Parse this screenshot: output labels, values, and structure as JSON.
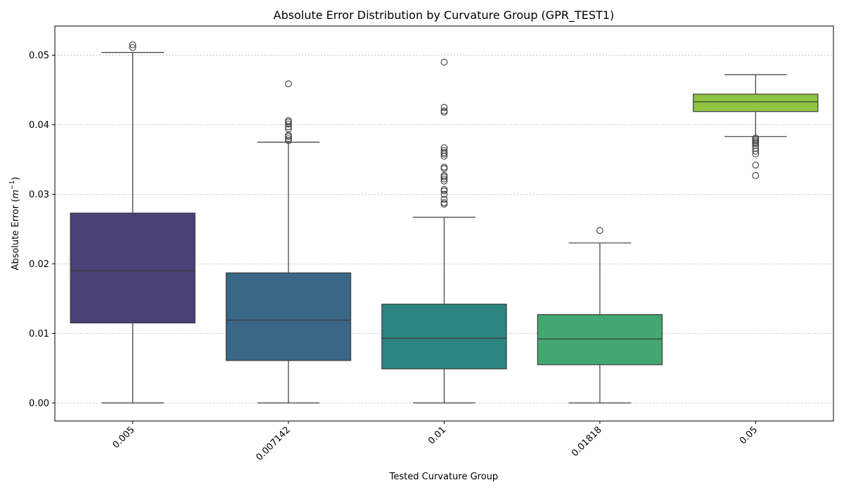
{
  "chart_data": {
    "type": "box",
    "title": "Absolute Error Distribution by Curvature Group (GPR_TEST1)",
    "xlabel": "Tested Curvature Group",
    "ylabel": "Absolute Error (",
    "ylabel_math": "m",
    "ylabel_sup": "−1",
    "ylabel_close": ")",
    "ylim": [
      -0.0026,
      0.0542
    ],
    "yticks": [
      0.0,
      0.01,
      0.02,
      0.03,
      0.04,
      0.05
    ],
    "ytick_labels": [
      "0.00",
      "0.01",
      "0.02",
      "0.03",
      "0.04",
      "0.05"
    ],
    "grid": "horizontal-dotted",
    "categories": [
      "0.005",
      "0.007142",
      "0.01",
      "0.01818",
      "0.05"
    ],
    "boxes": [
      {
        "category": "0.005",
        "color": "#4a4177",
        "whisker_low": 0.0,
        "q1": 0.0115,
        "median": 0.019,
        "q3": 0.0273,
        "whisker_high": 0.0504,
        "fliers": [
          0.0511,
          0.0515
        ]
      },
      {
        "category": "0.007142",
        "color": "#3b6786",
        "whisker_low": 0.0,
        "q1": 0.0061,
        "median": 0.0119,
        "q3": 0.0187,
        "whisker_high": 0.0375,
        "fliers": [
          0.0377,
          0.038,
          0.0383,
          0.0385,
          0.0394,
          0.0397,
          0.0401,
          0.0404,
          0.0406,
          0.0459
        ]
      },
      {
        "category": "0.01",
        "color": "#2b8480",
        "whisker_low": 0.0,
        "q1": 0.0049,
        "median": 0.0093,
        "q3": 0.0142,
        "whisker_high": 0.0267,
        "fliers": [
          0.0286,
          0.0288,
          0.0293,
          0.03,
          0.0305,
          0.0307,
          0.0319,
          0.0322,
          0.0325,
          0.0327,
          0.0337,
          0.0339,
          0.0355,
          0.0358,
          0.036,
          0.0363,
          0.0367,
          0.0418,
          0.042,
          0.0425,
          0.049
        ]
      },
      {
        "category": "0.01818",
        "color": "#42a771",
        "whisker_low": 0.0,
        "q1": 0.0055,
        "median": 0.0092,
        "q3": 0.0127,
        "whisker_high": 0.023,
        "fliers": [
          0.0248
        ]
      },
      {
        "category": "0.05",
        "color": "#8ec641",
        "whisker_low": 0.0383,
        "q1": 0.0419,
        "median": 0.0433,
        "q3": 0.0444,
        "whisker_high": 0.0472,
        "fliers": [
          0.0327,
          0.0342,
          0.0358,
          0.0362,
          0.0366,
          0.037,
          0.0373,
          0.0375,
          0.0377,
          0.0379,
          0.0381
        ]
      }
    ]
  }
}
